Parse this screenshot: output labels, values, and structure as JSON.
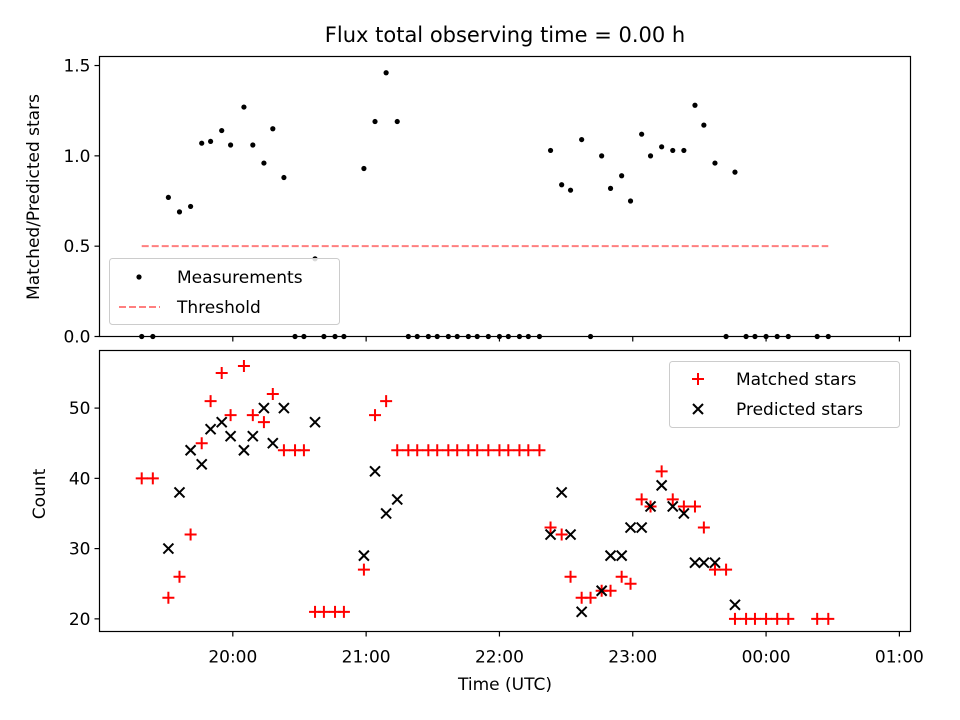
{
  "chart_data": [
    {
      "type": "scatter",
      "title": "Flux total observing time = 0.00 h",
      "ylabel": "Matched/Predicted stars",
      "ylim": [
        0,
        1.55
      ],
      "yticks": [
        "0.0",
        "0.5",
        "1.0",
        "1.5"
      ],
      "grid": false,
      "legend_position": "lower-left",
      "series": [
        {
          "name": "Measurements",
          "marker": "dot",
          "color": "#000000",
          "points": [
            [
              "19:19",
              0
            ],
            [
              "19:24",
              0
            ],
            [
              "19:31",
              0.77
            ],
            [
              "19:36",
              0.69
            ],
            [
              "19:41",
              0.72
            ],
            [
              "19:46",
              1.07
            ],
            [
              "19:50",
              1.08
            ],
            [
              "19:55",
              1.14
            ],
            [
              "19:59",
              1.06
            ],
            [
              "20:05",
              1.27
            ],
            [
              "20:09",
              1.06
            ],
            [
              "20:14",
              0.96
            ],
            [
              "20:18",
              1.15
            ],
            [
              "20:23",
              0.88
            ],
            [
              "20:28",
              0
            ],
            [
              "20:32",
              0
            ],
            [
              "20:37",
              0.43
            ],
            [
              "20:41",
              0
            ],
            [
              "20:46",
              0
            ],
            [
              "20:50",
              0
            ],
            [
              "20:59",
              0.93
            ],
            [
              "21:04",
              1.19
            ],
            [
              "21:09",
              1.46
            ],
            [
              "21:14",
              1.19
            ],
            [
              "21:19",
              0
            ],
            [
              "21:23",
              0
            ],
            [
              "21:28",
              0
            ],
            [
              "21:32",
              0
            ],
            [
              "21:37",
              0
            ],
            [
              "21:41",
              0
            ],
            [
              "21:46",
              0
            ],
            [
              "21:50",
              0
            ],
            [
              "21:55",
              0
            ],
            [
              "22:00",
              0
            ],
            [
              "22:04",
              0
            ],
            [
              "22:09",
              0
            ],
            [
              "22:13",
              0
            ],
            [
              "22:18",
              0
            ],
            [
              "22:23",
              1.03
            ],
            [
              "22:28",
              0.84
            ],
            [
              "22:32",
              0.81
            ],
            [
              "22:37",
              1.09
            ],
            [
              "22:41",
              0
            ],
            [
              "22:46",
              1.0
            ],
            [
              "22:50",
              0.82
            ],
            [
              "22:55",
              0.89
            ],
            [
              "22:59",
              0.75
            ],
            [
              "23:04",
              1.12
            ],
            [
              "23:08",
              1.0
            ],
            [
              "23:13",
              1.05
            ],
            [
              "23:18",
              1.03
            ],
            [
              "23:23",
              1.03
            ],
            [
              "23:28",
              1.28
            ],
            [
              "23:32",
              1.17
            ],
            [
              "23:37",
              0.96
            ],
            [
              "23:42",
              0
            ],
            [
              "23:46",
              0.91
            ],
            [
              "23:51",
              0
            ],
            [
              "23:55",
              0
            ],
            [
              "00:00",
              0
            ],
            [
              "00:05",
              0
            ],
            [
              "00:10",
              0
            ],
            [
              "00:23",
              0
            ],
            [
              "00:28",
              0
            ]
          ]
        },
        {
          "name": "Threshold",
          "marker": "dashed-line",
          "color": "#ff7f7f",
          "x_range": [
            "19:19",
            "00:28"
          ],
          "value": 0.5
        }
      ]
    },
    {
      "type": "scatter",
      "xlabel": "Time (UTC)",
      "ylabel": "Count",
      "ylim": [
        18.2,
        58.2
      ],
      "yticks": [
        "20",
        "30",
        "40",
        "50"
      ],
      "xticks": [
        "20:00",
        "21:00",
        "22:00",
        "23:00",
        "00:00",
        "01:00"
      ],
      "grid": false,
      "legend_position": "upper-right",
      "series": [
        {
          "name": "Matched stars",
          "marker": "plus",
          "color": "#ff0000",
          "points": [
            [
              "19:19",
              40
            ],
            [
              "19:24",
              40
            ],
            [
              "19:31",
              23
            ],
            [
              "19:36",
              26
            ],
            [
              "19:41",
              32
            ],
            [
              "19:46",
              45
            ],
            [
              "19:50",
              51
            ],
            [
              "19:55",
              55
            ],
            [
              "19:59",
              49
            ],
            [
              "20:05",
              56
            ],
            [
              "20:09",
              49
            ],
            [
              "20:14",
              48
            ],
            [
              "20:18",
              52
            ],
            [
              "20:23",
              44
            ],
            [
              "20:28",
              44
            ],
            [
              "20:32",
              44
            ],
            [
              "20:37",
              21
            ],
            [
              "20:41",
              21
            ],
            [
              "20:46",
              21
            ],
            [
              "20:50",
              21
            ],
            [
              "20:59",
              27
            ],
            [
              "21:04",
              49
            ],
            [
              "21:09",
              51
            ],
            [
              "21:14",
              44
            ],
            [
              "21:19",
              44
            ],
            [
              "21:23",
              44
            ],
            [
              "21:28",
              44
            ],
            [
              "21:32",
              44
            ],
            [
              "21:37",
              44
            ],
            [
              "21:41",
              44
            ],
            [
              "21:46",
              44
            ],
            [
              "21:50",
              44
            ],
            [
              "21:55",
              44
            ],
            [
              "22:00",
              44
            ],
            [
              "22:04",
              44
            ],
            [
              "22:09",
              44
            ],
            [
              "22:13",
              44
            ],
            [
              "22:18",
              44
            ],
            [
              "22:23",
              33
            ],
            [
              "22:28",
              32
            ],
            [
              "22:32",
              26
            ],
            [
              "22:37",
              23
            ],
            [
              "22:41",
              23
            ],
            [
              "22:46",
              24
            ],
            [
              "22:50",
              24
            ],
            [
              "22:55",
              26
            ],
            [
              "22:59",
              25
            ],
            [
              "23:04",
              37
            ],
            [
              "23:08",
              36
            ],
            [
              "23:13",
              41
            ],
            [
              "23:18",
              37
            ],
            [
              "23:23",
              36
            ],
            [
              "23:28",
              36
            ],
            [
              "23:32",
              33
            ],
            [
              "23:37",
              27
            ],
            [
              "23:42",
              27
            ],
            [
              "23:46",
              20
            ],
            [
              "23:51",
              20
            ],
            [
              "23:55",
              20
            ],
            [
              "00:00",
              20
            ],
            [
              "00:05",
              20
            ],
            [
              "00:10",
              20
            ],
            [
              "00:23",
              20
            ],
            [
              "00:28",
              20
            ]
          ]
        },
        {
          "name": "Predicted stars",
          "marker": "x",
          "color": "#000000",
          "points": [
            [
              "19:31",
              30
            ],
            [
              "19:36",
              38
            ],
            [
              "19:41",
              44
            ],
            [
              "19:46",
              42
            ],
            [
              "19:50",
              47
            ],
            [
              "19:55",
              48
            ],
            [
              "19:59",
              46
            ],
            [
              "20:05",
              44
            ],
            [
              "20:09",
              46
            ],
            [
              "20:14",
              50
            ],
            [
              "20:18",
              45
            ],
            [
              "20:23",
              50
            ],
            [
              "20:37",
              48
            ],
            [
              "20:59",
              29
            ],
            [
              "21:04",
              41
            ],
            [
              "21:09",
              35
            ],
            [
              "21:14",
              37
            ],
            [
              "22:23",
              32
            ],
            [
              "22:28",
              38
            ],
            [
              "22:32",
              32
            ],
            [
              "22:37",
              21
            ],
            [
              "22:46",
              24
            ],
            [
              "22:50",
              29
            ],
            [
              "22:55",
              29
            ],
            [
              "22:59",
              33
            ],
            [
              "23:04",
              33
            ],
            [
              "23:08",
              36
            ],
            [
              "23:13",
              39
            ],
            [
              "23:18",
              36
            ],
            [
              "23:23",
              35
            ],
            [
              "23:28",
              28
            ],
            [
              "23:32",
              28
            ],
            [
              "23:37",
              28
            ],
            [
              "23:46",
              22
            ]
          ]
        }
      ]
    }
  ]
}
